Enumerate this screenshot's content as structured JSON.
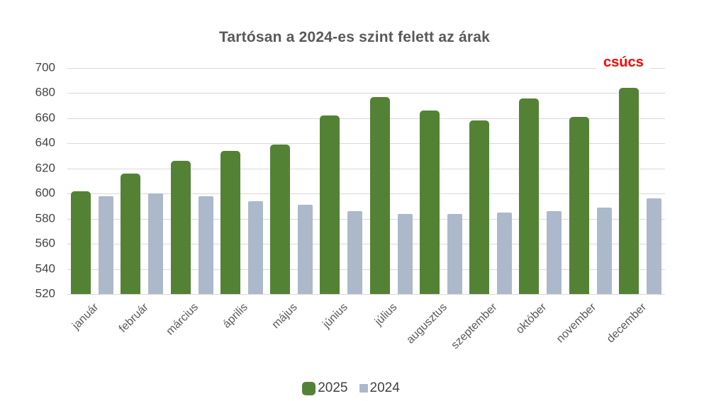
{
  "chart_data": {
    "type": "bar",
    "title": "Tartósan a 2024-es szint felett az árak",
    "categories": [
      "január",
      "február",
      "március",
      "április",
      "május",
      "június",
      "július",
      "augusztus",
      "szeptember",
      "október",
      "november",
      "december"
    ],
    "series": [
      {
        "name": "2025",
        "color": "#548235",
        "values": [
          602,
          616,
          626,
          634,
          639,
          662,
          677,
          666,
          658,
          676,
          661,
          684
        ]
      },
      {
        "name": "2024",
        "color": "#ACB9CA",
        "values": [
          598,
          600,
          598,
          594,
          591,
          586,
          584,
          584,
          585,
          586,
          589,
          596
        ]
      }
    ],
    "ylim": [
      520,
      700
    ],
    "yticks": [
      520,
      540,
      560,
      580,
      600,
      620,
      640,
      660,
      680,
      700
    ],
    "grid": true,
    "legend_position": "bottom",
    "annotation": {
      "text": "csúcs",
      "color": "#FF0000"
    }
  },
  "colors": {
    "background": "#FFFFFF",
    "gridline": "#D9D9D9",
    "title_text": "#595959",
    "axis_text": "#444444",
    "legend_text": "#404040"
  }
}
